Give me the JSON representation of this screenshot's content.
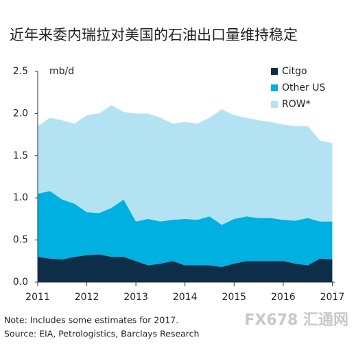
{
  "chart_data": {
    "type": "stacked_area",
    "title": "近年来委内瑞拉对美国的石油出口量维持稳定",
    "y_unit": "mb/d",
    "notes": [
      "Note: Includes some estimates for 2017.",
      "Source: EIA, Petrologistics, Barclays Research"
    ],
    "watermark": "FX678 汇通网",
    "legend_position": "upper right",
    "x": [
      2011,
      2011.25,
      2011.5,
      2011.75,
      2012,
      2012.25,
      2012.5,
      2012.75,
      2013,
      2013.25,
      2013.5,
      2013.75,
      2014,
      2014.25,
      2014.5,
      2014.75,
      2015,
      2015.25,
      2015.5,
      2015.75,
      2016,
      2016.25,
      2016.5,
      2016.75,
      2017
    ],
    "series": [
      {
        "name": "Citgo",
        "color": "#0d2e48",
        "values": [
          0.3,
          0.28,
          0.27,
          0.3,
          0.32,
          0.33,
          0.3,
          0.3,
          0.25,
          0.2,
          0.22,
          0.25,
          0.2,
          0.2,
          0.2,
          0.18,
          0.22,
          0.25,
          0.25,
          0.25,
          0.25,
          0.22,
          0.2,
          0.28,
          0.27
        ]
      },
      {
        "name": "Other US",
        "color": "#00b0e0",
        "values": [
          0.75,
          0.8,
          0.71,
          0.63,
          0.51,
          0.49,
          0.58,
          0.68,
          0.47,
          0.55,
          0.5,
          0.49,
          0.55,
          0.54,
          0.58,
          0.5,
          0.53,
          0.53,
          0.51,
          0.51,
          0.49,
          0.51,
          0.56,
          0.44,
          0.45
        ]
      },
      {
        "name": "ROW*",
        "color": "#b3e3f3",
        "values": [
          0.8,
          0.87,
          0.94,
          0.95,
          1.15,
          1.18,
          1.22,
          1.04,
          1.28,
          1.25,
          1.23,
          1.14,
          1.15,
          1.14,
          1.17,
          1.37,
          1.23,
          1.17,
          1.16,
          1.14,
          1.13,
          1.12,
          1.09,
          0.96,
          0.93
        ]
      }
    ],
    "xlim": [
      2011,
      2017.05
    ],
    "xticks": [
      2011,
      2012,
      2013,
      2014,
      2015,
      2016,
      2017
    ],
    "ylim": [
      0,
      2.5
    ],
    "yticks": [
      {
        "value": 0,
        "label": "0.0"
      },
      0.5,
      {
        "value": 1,
        "label": "1.0"
      },
      1.5,
      {
        "value": 2,
        "label": "2.0"
      },
      2.5
    ]
  }
}
